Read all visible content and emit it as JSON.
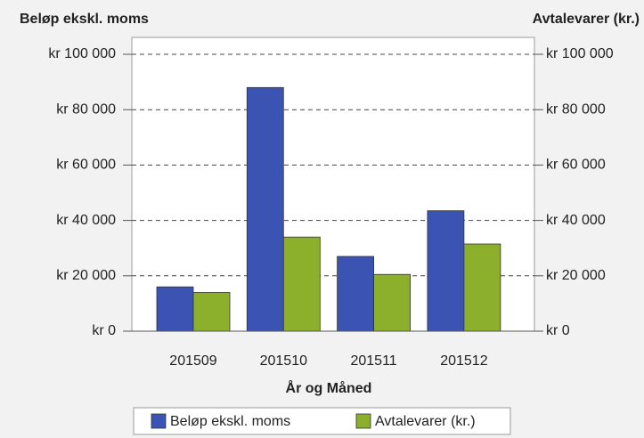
{
  "chart_data": {
    "type": "bar",
    "y_label": "Beløp ekskl. moms",
    "y2_label": "Avtalevarer (kr.)",
    "x_label": "År og Måned",
    "categories": [
      "201509",
      "201510",
      "201511",
      "201512"
    ],
    "series": [
      {
        "name": "Beløp ekskl. moms",
        "color": "#3b54b4",
        "values": [
          16000,
          88000,
          27000,
          43500
        ]
      },
      {
        "name": "Avtalevarer (kr.)",
        "color": "#8cb02c",
        "axis": "y2",
        "values": [
          14000,
          34000,
          20500,
          31500
        ]
      }
    ],
    "ylim": [
      0,
      100000
    ],
    "yticks": [
      {
        "value": 0,
        "label": "kr 0"
      },
      {
        "value": 20000,
        "label": "kr 20 000"
      },
      {
        "value": 40000,
        "label": "kr 40 000"
      },
      {
        "value": 60000,
        "label": "kr 60 000"
      },
      {
        "value": 80000,
        "label": "kr 80 000"
      },
      {
        "value": 100000,
        "label": "kr 100 000"
      }
    ],
    "y2lim": [
      0,
      100000
    ],
    "y2ticks": [
      {
        "value": 0,
        "label": "kr 0"
      },
      {
        "value": 20000,
        "label": "kr 20 000"
      },
      {
        "value": 40000,
        "label": "kr 40 000"
      },
      {
        "value": 60000,
        "label": "kr 60 000"
      },
      {
        "value": 80000,
        "label": "kr 80 000"
      },
      {
        "value": 100000,
        "label": "kr 100 000"
      }
    ],
    "grid": true,
    "legend": "bottom"
  }
}
